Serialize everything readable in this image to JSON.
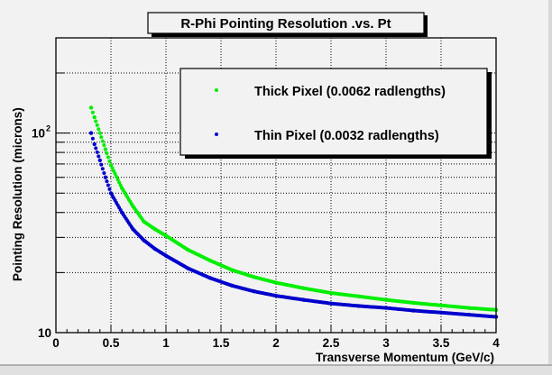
{
  "chart_data": {
    "type": "scatter",
    "title": "R-Phi Pointing Resolution .vs. Pt",
    "xlabel": "Transverse Momentum (GeV/c)",
    "ylabel": "Pointing Resolution (microns)",
    "xlim": [
      0,
      4
    ],
    "ylim": [
      10,
      300
    ],
    "yscale": "log",
    "grid": true,
    "x_ticks": [
      "0",
      "0.5",
      "1",
      "1.5",
      "2",
      "2.5",
      "3",
      "3.5",
      "4"
    ],
    "y_tick_labels": [
      {
        "value": 10,
        "label": "10"
      },
      {
        "value": 100,
        "label": "10",
        "exponent": "2"
      }
    ],
    "legend_position": "top-right",
    "series": [
      {
        "name": "Thick Pixel (0.0062 radlengths)",
        "color": "#00ee00",
        "x": [
          0.32,
          0.35,
          0.4,
          0.45,
          0.5,
          0.6,
          0.7,
          0.8,
          0.9,
          1.0,
          1.2,
          1.4,
          1.6,
          1.8,
          2.0,
          2.25,
          2.5,
          2.75,
          3.0,
          3.25,
          3.5,
          3.75,
          4.0
        ],
        "y": [
          134,
          120,
          100,
          83,
          69,
          53,
          43,
          36,
          33,
          30.6,
          26,
          23,
          20.6,
          19,
          17.8,
          16.7,
          15.8,
          15.2,
          14.6,
          14.1,
          13.7,
          13.3,
          13.0
        ]
      },
      {
        "name": "Thin Pixel (0.0032 radlengths)",
        "color": "#0000cc",
        "x": [
          0.32,
          0.35,
          0.4,
          0.45,
          0.5,
          0.6,
          0.7,
          0.8,
          0.9,
          1.0,
          1.2,
          1.4,
          1.6,
          1.8,
          2.0,
          2.25,
          2.5,
          2.75,
          3.0,
          3.25,
          3.5,
          3.75,
          4.0
        ],
        "y": [
          100,
          88,
          73,
          60,
          50,
          40,
          33,
          29,
          26.3,
          24.3,
          21,
          18.8,
          17.2,
          16.1,
          15.3,
          14.6,
          14.0,
          13.6,
          13.3,
          12.9,
          12.6,
          12.3,
          12.0
        ]
      }
    ]
  }
}
